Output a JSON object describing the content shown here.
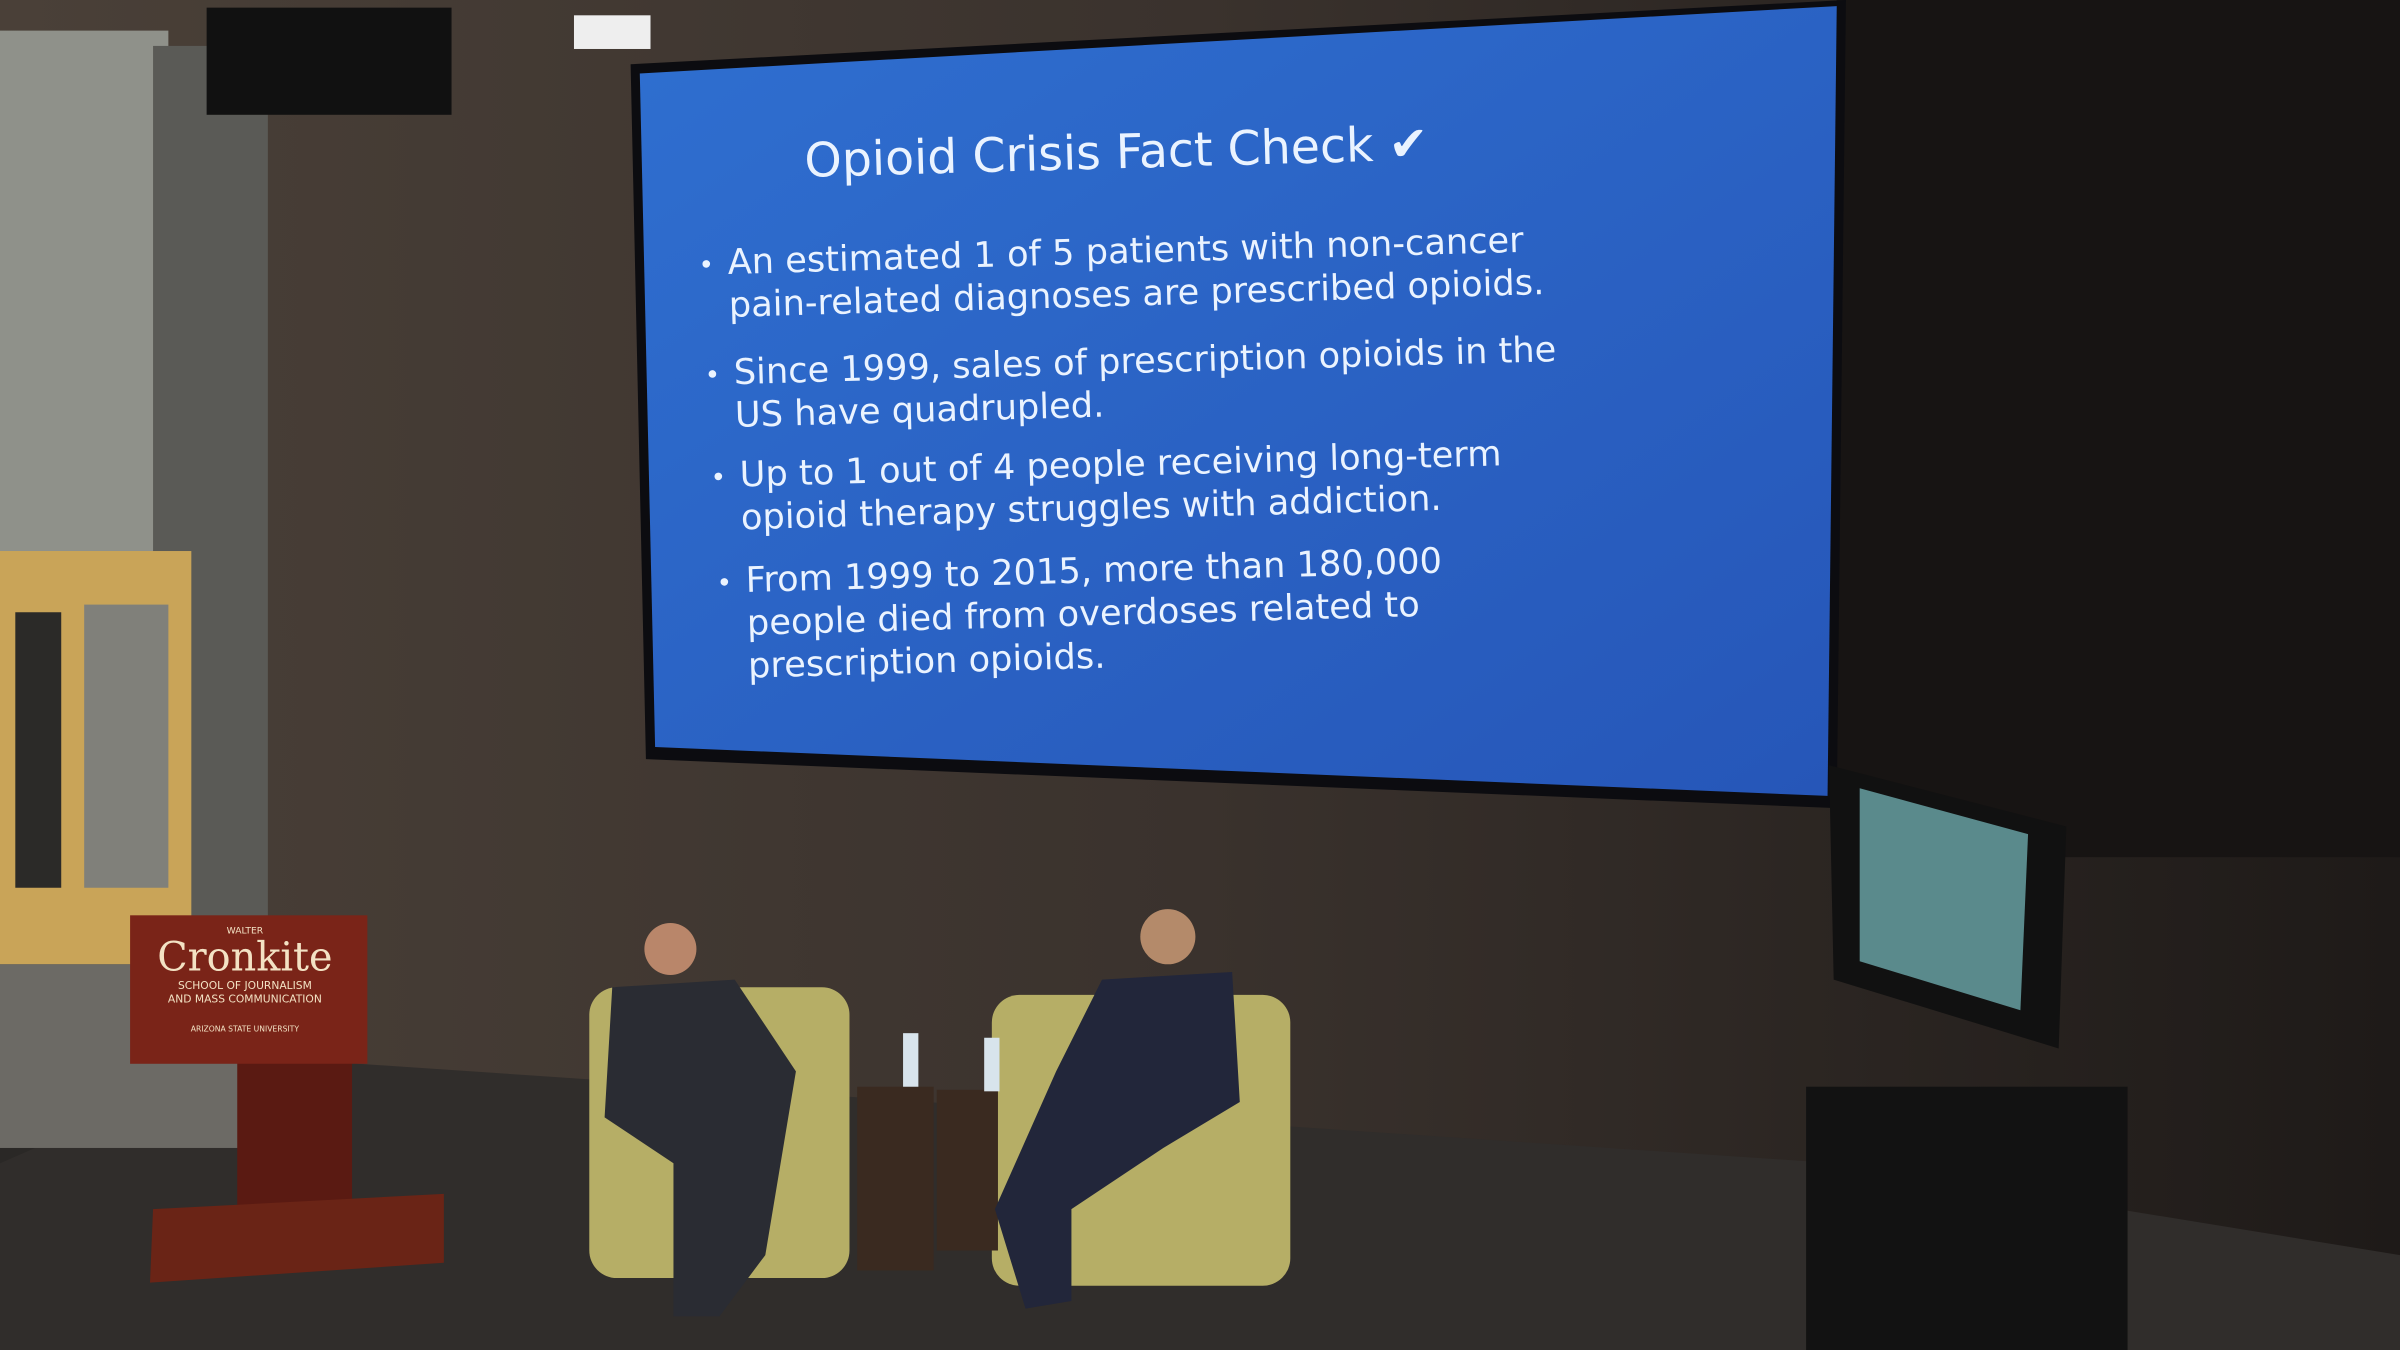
{
  "slide": {
    "title": "Opioid Crisis Fact Check ✔",
    "bullets": [
      [
        "An estimated 1 of 5 patients with non-cancer",
        "pain-related diagnoses are prescribed opioids."
      ],
      [
        "Since 1999, sales of prescription opioids in the",
        "US have quadrupled."
      ],
      [
        "Up to 1 out of 4 people receiving long-term",
        "opioid therapy struggles with addiction."
      ],
      [
        "From 1999 to 2015, more than 180,000",
        "people died from overdoses related to",
        "prescription opioids."
      ]
    ]
  },
  "podium": {
    "lines": [
      "WALTER",
      "Cronkite",
      "SCHOOL OF JOURNALISM",
      "AND MASS COMMUNICATION",
      "ARIZONA STATE UNIVERSITY"
    ]
  }
}
